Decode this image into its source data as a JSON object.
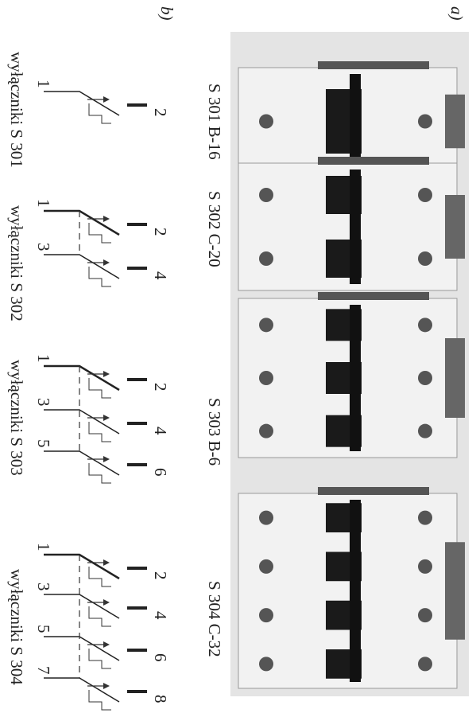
{
  "labels": {
    "a": "a)",
    "b": "b)"
  },
  "breakers": [
    {
      "model": "S 301 B-16",
      "caption": "wyłączniki S 301",
      "terminals": [
        "1",
        "2"
      ]
    },
    {
      "model": "S 302 C-20",
      "caption": "wyłączniki S 302",
      "terminals": [
        "1",
        "2",
        "3",
        "4"
      ]
    },
    {
      "model": "S 303 B-6",
      "caption": "wyłączniki S 303",
      "terminals": [
        "1",
        "2",
        "3",
        "4",
        "5",
        "6"
      ]
    },
    {
      "model": "S 304 C-32",
      "caption": "wyłączniki S 304",
      "terminals": [
        "1",
        "2",
        "3",
        "4",
        "5",
        "6",
        "7",
        "8"
      ]
    }
  ]
}
